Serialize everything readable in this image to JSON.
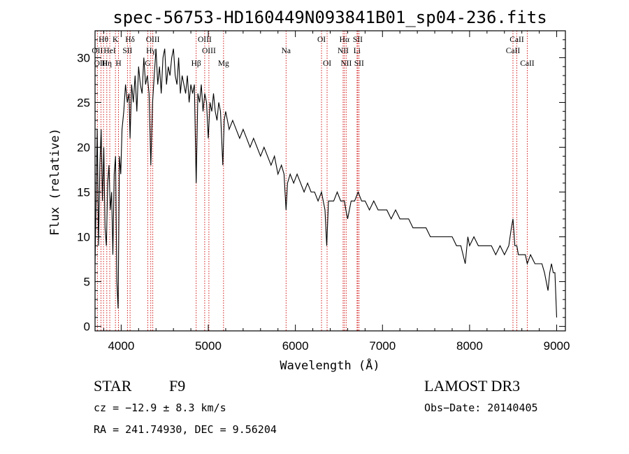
{
  "chart_data": {
    "type": "line",
    "title": "spec-56753-HD160449N093841B01_sp04-236.fits",
    "xlabel": "Wavelength (Å)",
    "ylabel": "Flux (relative)",
    "xlim": [
      3700,
      9100
    ],
    "ylim": [
      -0.5,
      33
    ],
    "xticks": [
      4000,
      5000,
      6000,
      7000,
      8000,
      9000
    ],
    "yticks": [
      0,
      5,
      10,
      15,
      20,
      25,
      30
    ],
    "series": [
      {
        "name": "flux",
        "x": [
          3700,
          3712,
          3725,
          3740,
          3755,
          3770,
          3785,
          3800,
          3815,
          3830,
          3845,
          3860,
          3875,
          3890,
          3905,
          3920,
          3935,
          3950,
          3965,
          3980,
          3995,
          4010,
          4030,
          4050,
          4070,
          4090,
          4102,
          4120,
          4140,
          4160,
          4180,
          4200,
          4220,
          4240,
          4260,
          4280,
          4300,
          4320,
          4340,
          4360,
          4380,
          4400,
          4420,
          4440,
          4460,
          4480,
          4500,
          4520,
          4540,
          4560,
          4580,
          4600,
          4620,
          4640,
          4660,
          4680,
          4700,
          4720,
          4740,
          4760,
          4780,
          4800,
          4820,
          4840,
          4861,
          4880,
          4900,
          4920,
          4940,
          4960,
          4980,
          5000,
          5020,
          5040,
          5060,
          5080,
          5100,
          5120,
          5140,
          5167,
          5183,
          5200,
          5240,
          5280,
          5320,
          5360,
          5400,
          5440,
          5480,
          5520,
          5560,
          5600,
          5640,
          5680,
          5720,
          5760,
          5800,
          5840,
          5870,
          5893,
          5910,
          5940,
          5980,
          6020,
          6060,
          6100,
          6140,
          6180,
          6220,
          6260,
          6300,
          6320,
          6340,
          6360,
          6380,
          6400,
          6440,
          6480,
          6520,
          6563,
          6580,
          6600,
          6640,
          6680,
          6720,
          6760,
          6800,
          6850,
          6900,
          6950,
          7000,
          7050,
          7100,
          7150,
          7200,
          7250,
          7300,
          7350,
          7400,
          7450,
          7500,
          7550,
          7600,
          7650,
          7700,
          7750,
          7800,
          7850,
          7900,
          7950,
          7980,
          8000,
          8050,
          8100,
          8150,
          8200,
          8250,
          8300,
          8350,
          8400,
          8450,
          8480,
          8498,
          8520,
          8542,
          8560,
          8600,
          8640,
          8662,
          8700,
          8750,
          8800,
          8830,
          8860,
          8880,
          8900,
          8920,
          8940,
          8960,
          8980,
          9000
        ],
        "values": [
          7,
          14,
          22,
          9,
          18,
          22,
          14,
          20,
          11,
          9,
          16,
          18,
          13,
          15,
          8,
          17,
          19,
          5,
          2,
          19,
          17,
          22,
          24,
          27,
          25,
          26,
          21,
          27,
          25,
          28,
          24,
          29,
          27,
          26,
          30,
          27,
          28,
          26,
          18,
          25,
          28,
          31,
          27,
          29,
          26,
          30,
          31,
          27,
          29,
          28,
          30,
          31,
          28,
          27,
          30,
          26,
          28,
          27,
          26,
          28,
          25,
          27,
          26,
          27,
          16,
          26,
          25,
          27,
          24,
          26,
          25,
          21,
          25,
          24,
          26,
          24,
          23,
          25,
          24,
          18,
          23,
          24,
          22,
          23,
          22,
          21,
          22,
          21,
          20,
          21,
          20,
          19,
          20,
          19,
          18,
          19,
          17,
          18,
          17,
          13,
          16,
          17,
          16,
          17,
          16,
          15,
          16,
          15,
          15,
          14,
          15,
          14,
          13,
          9,
          14,
          14,
          14,
          15,
          14,
          14,
          13,
          12,
          14,
          14,
          15,
          14,
          14,
          13,
          14,
          13,
          13,
          13,
          12,
          13,
          12,
          12,
          12,
          11,
          11,
          11,
          11,
          10,
          10,
          10,
          10,
          10,
          10,
          9,
          9,
          7,
          10,
          9,
          10,
          9,
          9,
          9,
          9,
          8,
          9,
          8,
          9,
          11,
          12,
          9,
          9,
          8,
          8,
          8,
          7,
          8,
          7,
          7,
          7,
          6,
          5,
          4,
          6,
          7,
          6,
          6,
          1
        ]
      }
    ],
    "lines": [
      {
        "label": "Hθ",
        "x": 3797,
        "row": 0
      },
      {
        "label": "OII",
        "x": 3727,
        "row": 1
      },
      {
        "label": "OIII",
        "x": 3768,
        "row": 2
      },
      {
        "label": "Hη",
        "x": 3835,
        "row": 2
      },
      {
        "label": "HeI",
        "x": 3869,
        "row": 1
      },
      {
        "label": "K",
        "x": 3934,
        "row": 0
      },
      {
        "label": "SII",
        "x": 4072,
        "row": 1
      },
      {
        "label": "H",
        "x": 3969,
        "row": 2
      },
      {
        "label": "Hδ",
        "x": 4102,
        "row": 0
      },
      {
        "label": "OIII",
        "x": 4363,
        "row": 0
      },
      {
        "label": "Hγ",
        "x": 4340,
        "row": 1
      },
      {
        "label": "G",
        "x": 4305,
        "row": 2
      },
      {
        "label": "OIII",
        "x": 4959,
        "row": 0
      },
      {
        "label": "OIII",
        "x": 5007,
        "row": 1
      },
      {
        "label": "Hβ",
        "x": 4861,
        "row": 2
      },
      {
        "label": "Mg",
        "x": 5175,
        "row": 2
      },
      {
        "label": "Na",
        "x": 5893,
        "row": 1
      },
      {
        "label": "OI",
        "x": 6300,
        "row": 0
      },
      {
        "label": "OI",
        "x": 6364,
        "row": 2
      },
      {
        "label": "Hα",
        "x": 6563,
        "row": 0
      },
      {
        "label": "SII",
        "x": 6716,
        "row": 0
      },
      {
        "label": "NII",
        "x": 6548,
        "row": 1
      },
      {
        "label": "Li",
        "x": 6708,
        "row": 1
      },
      {
        "label": "NII",
        "x": 6583,
        "row": 2
      },
      {
        "label": "SII",
        "x": 6731,
        "row": 2
      },
      {
        "label": "CaII",
        "x": 8542,
        "row": 0
      },
      {
        "label": "CaII",
        "x": 8498,
        "row": 1
      },
      {
        "label": "CaII",
        "x": 8662,
        "row": 2
      }
    ]
  },
  "info": {
    "class": "STAR",
    "subclass": "F9",
    "survey": "LAMOST DR3",
    "cz": "cz = −12.9 ± 8.3 km/s",
    "obs_date": "Obs−Date: 20140405",
    "radec": "RA = 241.74930, DEC =   9.56204"
  },
  "colors": {
    "line_marker": "#cc0000",
    "axis": "#000000"
  }
}
